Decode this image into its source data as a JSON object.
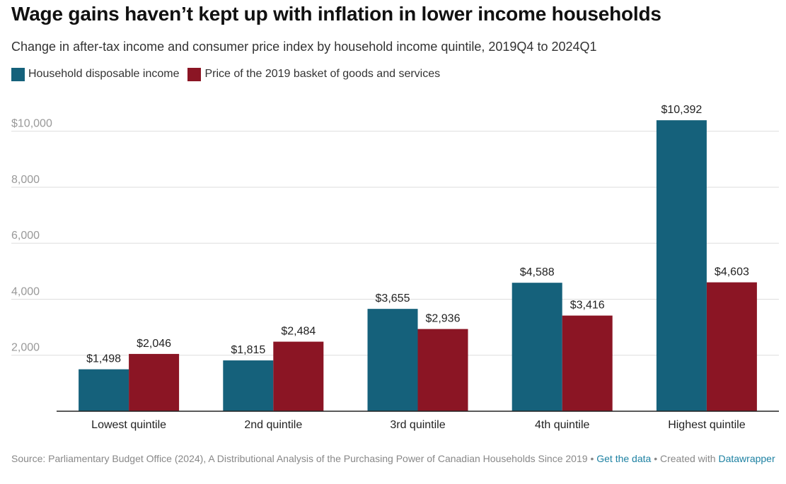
{
  "title": "Wage gains haven’t kept up with inflation in lower income households",
  "subtitle": "Change in after-tax income and consumer price index by household income quintile, 2019Q4 to 2024Q1",
  "footer": {
    "source": "Source: Parliamentary Budget Office (2024), A Distributional Analysis of the Purchasing Power of Canadian Households Since 2019",
    "get_data": "Get the data",
    "created_with": "Created with",
    "datawrapper": "Datawrapper"
  },
  "colors": {
    "income": "#15617b",
    "price": "#8b1524",
    "grid": "#dddddd",
    "tick_text": "#999999"
  },
  "chart_data": {
    "type": "bar",
    "categories": [
      "Lowest quintile",
      "2nd quintile",
      "3rd quintile",
      "4th quintile",
      "Highest quintile"
    ],
    "series": [
      {
        "name": "Household disposable income",
        "values": [
          1498,
          1815,
          3655,
          4588,
          10392
        ],
        "labels": [
          "$1,498",
          "$1,815",
          "$3,655",
          "$4,588",
          "$10,392"
        ]
      },
      {
        "name": "Price of the 2019 basket of goods and services",
        "values": [
          2046,
          2484,
          2936,
          3416,
          4603
        ],
        "labels": [
          "$2,046",
          "$2,484",
          "$2,936",
          "$3,416",
          "$4,603"
        ]
      }
    ],
    "yticks": [
      2000,
      4000,
      6000,
      8000,
      10000
    ],
    "ytick_labels": [
      "2,000",
      "4,000",
      "6,000",
      "8,000",
      "$10,000"
    ],
    "ylim": [
      0,
      11000
    ],
    "grid": true,
    "legend_position": "top-left"
  }
}
